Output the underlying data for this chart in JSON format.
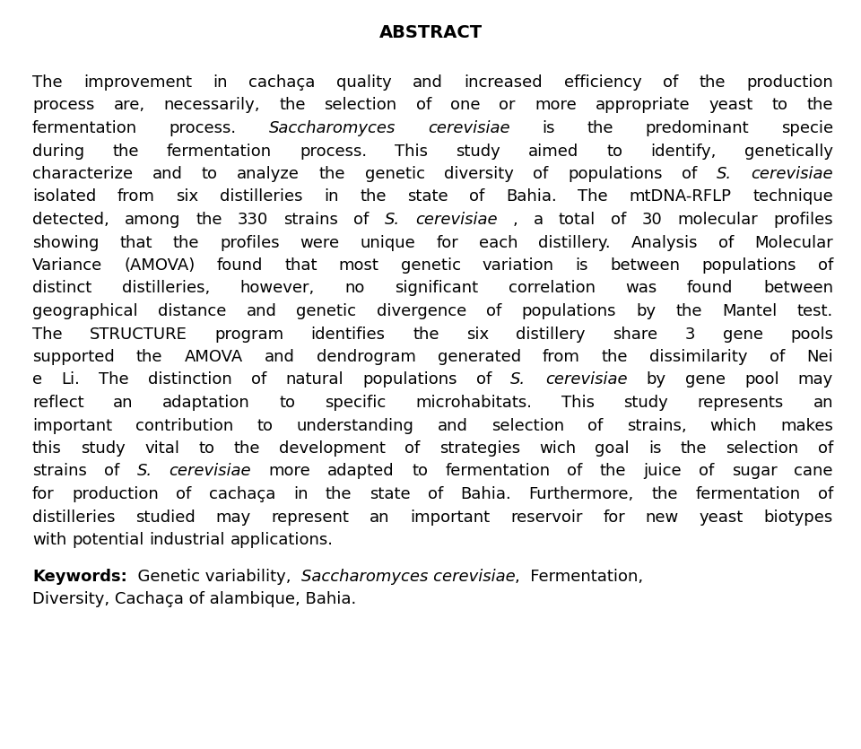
{
  "title": "ABSTRACT",
  "background_color": "#ffffff",
  "text_color": "#000000",
  "title_fontsize": 14,
  "body_fontsize": 13,
  "keyword_fontsize": 13,
  "lines": [
    [
      [
        "The improvement in cachaça quality and increased efficiency of the production",
        false
      ]
    ],
    [
      [
        "process are, necessarily, the selection of one or more appropriate yeast to the",
        false
      ]
    ],
    [
      [
        "fermentation process. ",
        false
      ],
      [
        "Saccharomyces cerevisiae",
        true
      ],
      [
        " is the predominant specie",
        false
      ]
    ],
    [
      [
        "during the fermentation process. This study aimed to identify, genetically",
        false
      ]
    ],
    [
      [
        "characterize and to analyze the genetic diversity of populations of ",
        false
      ],
      [
        "S. cerevisiae",
        true
      ]
    ],
    [
      [
        "isolated from six distilleries in the state of Bahia. The mtDNA-RFLP technique",
        false
      ]
    ],
    [
      [
        "detected, among the 330 strains of ",
        false
      ],
      [
        "S. cerevisiae",
        true
      ],
      [
        ", a total of 30 molecular profiles",
        false
      ]
    ],
    [
      [
        "showing that the profiles were unique for each distillery. Analysis of Molecular",
        false
      ]
    ],
    [
      [
        "Variance (AMOVA) found that most genetic variation is between populations of",
        false
      ]
    ],
    [
      [
        "distinct distilleries, however,  no significant correlation was found between",
        false
      ]
    ],
    [
      [
        "geographical distance and genetic divergence of populations by the Mantel test.",
        false
      ]
    ],
    [
      [
        "The STRUCTURE program identifies the six distillery share 3 gene pools",
        false
      ]
    ],
    [
      [
        "supported the AMOVA and dendrogram generated from the dissimilarity of Nei",
        false
      ]
    ],
    [
      [
        "e Li. The distinction of natural populations of ",
        false
      ],
      [
        "S. cerevisiae",
        true
      ],
      [
        " by gene pool may",
        false
      ]
    ],
    [
      [
        "reflect an adaptation to specific microhabitats. This study represents an",
        false
      ]
    ],
    [
      [
        "important contribution to understanding and selection of strains, which makes",
        false
      ]
    ],
    [
      [
        "this study vital to the development of strategies wich goal is the selection of",
        false
      ]
    ],
    [
      [
        "strains of ",
        false
      ],
      [
        "S. cerevisiae",
        true
      ],
      [
        " more adapted to fermentation of the juice of sugar cane",
        false
      ]
    ],
    [
      [
        "for production of cachaça in the state of Bahia. Furthermore, the fermentation of",
        false
      ]
    ],
    [
      [
        "distilleries studied may represent an important reservoir for new yeast biotypes",
        false
      ]
    ],
    [
      [
        "with potential industrial applications.",
        false
      ]
    ]
  ],
  "last_line_index": 20,
  "kw_line1": [
    [
      "Keywords:",
      false,
      "bold"
    ],
    [
      "  Genetic variability,  ",
      false,
      "normal"
    ],
    [
      "Saccharomyces cerevisiae",
      true,
      "normal"
    ],
    [
      ",  Fermentation,",
      false,
      "normal"
    ]
  ],
  "kw_line2": [
    [
      "Diversity, Cachaça of alambique, Bahia.",
      false,
      "normal"
    ]
  ]
}
